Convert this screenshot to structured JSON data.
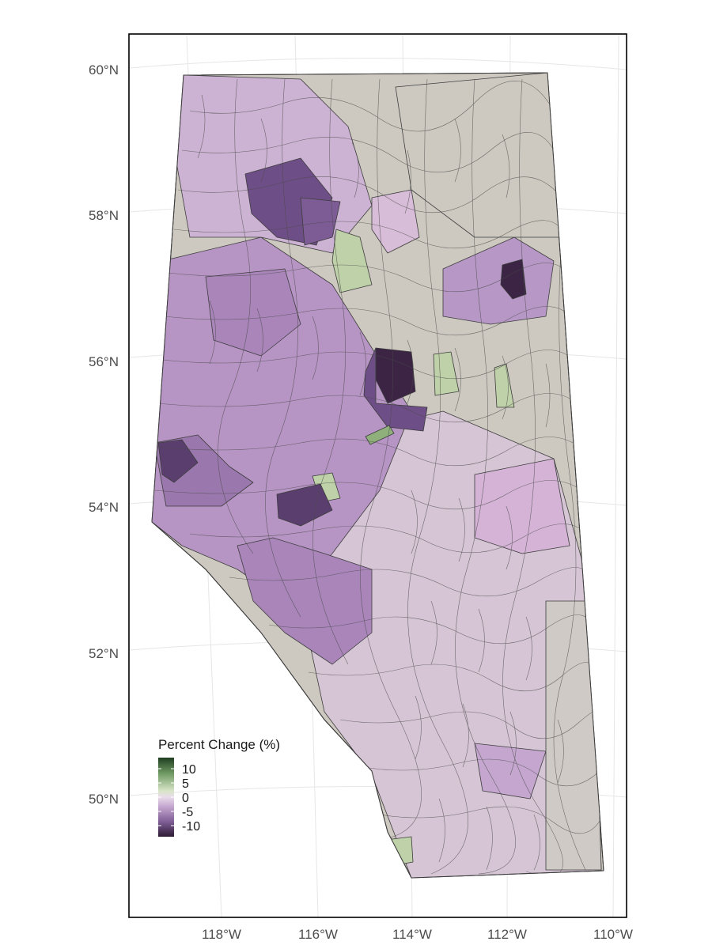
{
  "map": {
    "region": "Alberta",
    "projection": "conic"
  },
  "axes": {
    "lat_ticks": [
      "60°N",
      "58°N",
      "56°N",
      "54°N",
      "52°N",
      "50°N"
    ],
    "lon_ticks": [
      "118°W",
      "116°W",
      "114°W",
      "112°W",
      "110°W"
    ]
  },
  "legend": {
    "title": "Percent Change (%)",
    "labels": [
      "10",
      "5",
      "0",
      "-5",
      "-10"
    ],
    "range": [
      -12,
      12
    ],
    "colors": [
      "#f1e4d6"
    ]
  },
  "colors": {
    "neutral": "#cdc9c0",
    "light_pink": "#d9c4d9",
    "light_purple": "#c4a6cf",
    "mid_purple": "#a27fb3",
    "dark_purple": "#6e4e86",
    "darkest_purple": "#3b2444",
    "light_green": "#bfd1a8",
    "mid_green": "#8fb07b",
    "dark_green": "#1f3d21",
    "border": "#3d3d3d",
    "grid": "#e5e5e5",
    "frame": "#000000"
  }
}
